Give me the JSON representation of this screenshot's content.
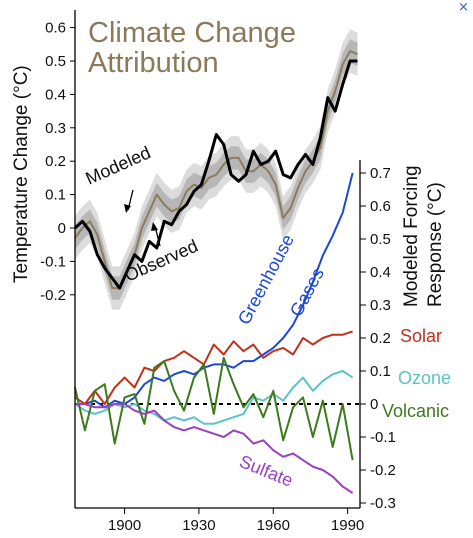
{
  "chart_data": {
    "type": "line",
    "title": [
      "Climate Change",
      "Attribution"
    ],
    "xlabel": "",
    "ylabel_left": "Temperature Change (°C)",
    "ylabel_right": [
      "Modeled Forcing",
      "Response (°C)"
    ],
    "xlim": [
      1880,
      1995
    ],
    "xticks": [
      1900,
      1930,
      1960,
      1990
    ],
    "yticks_left": [
      -0.2,
      -0.1,
      0,
      0.1,
      0.2,
      0.3,
      0.4,
      0.5,
      0.6
    ],
    "yticks_right": [
      -0.3,
      -0.2,
      -0.1,
      0,
      0.1,
      0.2,
      0.3,
      0.4,
      0.5,
      0.6,
      0.7
    ],
    "top_panel": {
      "x": [
        1880,
        1883,
        1886,
        1889,
        1892,
        1895,
        1898,
        1901,
        1904,
        1907,
        1910,
        1913,
        1916,
        1919,
        1922,
        1925,
        1928,
        1931,
        1934,
        1937,
        1940,
        1943,
        1946,
        1949,
        1952,
        1955,
        1958,
        1961,
        1964,
        1967,
        1970,
        1973,
        1976,
        1979,
        1982,
        1985,
        1988,
        1991,
        1994
      ],
      "series": [
        {
          "name": "Modeled",
          "color": "#8c7c5e",
          "values": [
            -0.03,
            0.0,
            0.02,
            -0.02,
            -0.1,
            -0.18,
            -0.18,
            -0.13,
            -0.08,
            0.0,
            0.05,
            0.1,
            0.07,
            0.05,
            0.06,
            0.11,
            0.13,
            0.12,
            0.15,
            0.16,
            0.19,
            0.21,
            0.21,
            0.17,
            0.17,
            0.19,
            0.17,
            0.13,
            0.03,
            0.06,
            0.12,
            0.17,
            0.2,
            0.24,
            0.35,
            0.41,
            0.49,
            0.53,
            0.52
          ],
          "band_inner": 0.035,
          "band_outer": 0.065,
          "inner_color": "#b7b7b7",
          "outer_color": "#dcdcdc"
        },
        {
          "name": "Observed",
          "color": "#000000",
          "values": [
            0.0,
            0.02,
            -0.01,
            -0.08,
            -0.12,
            -0.15,
            -0.18,
            -0.13,
            -0.08,
            -0.1,
            -0.04,
            -0.06,
            0.02,
            0.01,
            0.05,
            0.07,
            0.11,
            0.13,
            0.2,
            0.28,
            0.25,
            0.16,
            0.14,
            0.16,
            0.23,
            0.19,
            0.2,
            0.23,
            0.16,
            0.15,
            0.19,
            0.22,
            0.19,
            0.27,
            0.39,
            0.35,
            0.43,
            0.5,
            0.5
          ]
        }
      ]
    },
    "bottom_panel": {
      "x": [
        1880,
        1884,
        1888,
        1892,
        1896,
        1900,
        1904,
        1908,
        1912,
        1916,
        1920,
        1924,
        1928,
        1932,
        1936,
        1940,
        1944,
        1948,
        1952,
        1956,
        1960,
        1964,
        1968,
        1972,
        1976,
        1980,
        1984,
        1988,
        1992
      ],
      "zero_line": "dashed",
      "series": [
        {
          "name": "Greenhouse Gases",
          "color": "#1c47d8",
          "values": [
            0.0,
            0.0,
            0.01,
            -0.01,
            0.01,
            0.0,
            0.02,
            0.06,
            0.08,
            0.07,
            0.09,
            0.1,
            0.09,
            0.11,
            0.12,
            0.12,
            0.11,
            0.13,
            0.13,
            0.15,
            0.17,
            0.2,
            0.24,
            0.3,
            0.37,
            0.45,
            0.51,
            0.58,
            0.7
          ]
        },
        {
          "name": "Solar",
          "color": "#c0301b",
          "values": [
            0.02,
            0.0,
            0.04,
            0.0,
            0.05,
            0.08,
            0.05,
            0.11,
            0.1,
            0.13,
            0.14,
            0.16,
            0.14,
            0.12,
            0.18,
            0.15,
            0.19,
            0.16,
            0.18,
            0.14,
            0.16,
            0.17,
            0.15,
            0.2,
            0.18,
            0.2,
            0.21,
            0.21,
            0.22
          ]
        },
        {
          "name": "Ozone",
          "color": "#5bc3c6",
          "values": [
            0.0,
            -0.02,
            -0.03,
            -0.02,
            0.0,
            -0.01,
            0.0,
            -0.02,
            -0.03,
            -0.05,
            -0.04,
            -0.05,
            -0.04,
            -0.06,
            -0.06,
            -0.05,
            -0.04,
            -0.03,
            0.02,
            0.01,
            0.03,
            0.01,
            0.05,
            0.08,
            0.04,
            0.07,
            0.09,
            0.1,
            0.08
          ]
        },
        {
          "name": "Volcanic",
          "color": "#3d7a1e",
          "values": [
            0.05,
            -0.08,
            0.04,
            0.06,
            -0.12,
            0.02,
            0.03,
            -0.06,
            0.11,
            0.13,
            0.04,
            -0.02,
            0.08,
            0.12,
            -0.03,
            0.14,
            0.06,
            -0.01,
            0.03,
            -0.04,
            0.04,
            -0.11,
            -0.01,
            0.02,
            -0.1,
            0.01,
            -0.13,
            0.0,
            -0.17
          ]
        },
        {
          "name": "Sulfate",
          "color": "#9a3ec5",
          "values": [
            0.0,
            0.0,
            -0.01,
            -0.01,
            0.0,
            0.0,
            -0.02,
            -0.03,
            -0.02,
            -0.05,
            -0.07,
            -0.08,
            -0.07,
            -0.08,
            -0.09,
            -0.1,
            -0.08,
            -0.09,
            -0.12,
            -0.11,
            -0.14,
            -0.16,
            -0.15,
            -0.17,
            -0.19,
            -0.2,
            -0.22,
            -0.25,
            -0.27
          ]
        }
      ]
    },
    "annotations": {
      "modeled": "Modeled",
      "observed": "Observed",
      "greenhouse_1": "Greenhouse",
      "greenhouse_2": "Gases",
      "solar": "Solar",
      "ozone": "Ozone",
      "volcanic": "Volcanic",
      "sulfate": "Sulfate"
    },
    "grid": false
  },
  "window": {
    "close_glyph": "×",
    "close_color": "#2a5bd6"
  }
}
